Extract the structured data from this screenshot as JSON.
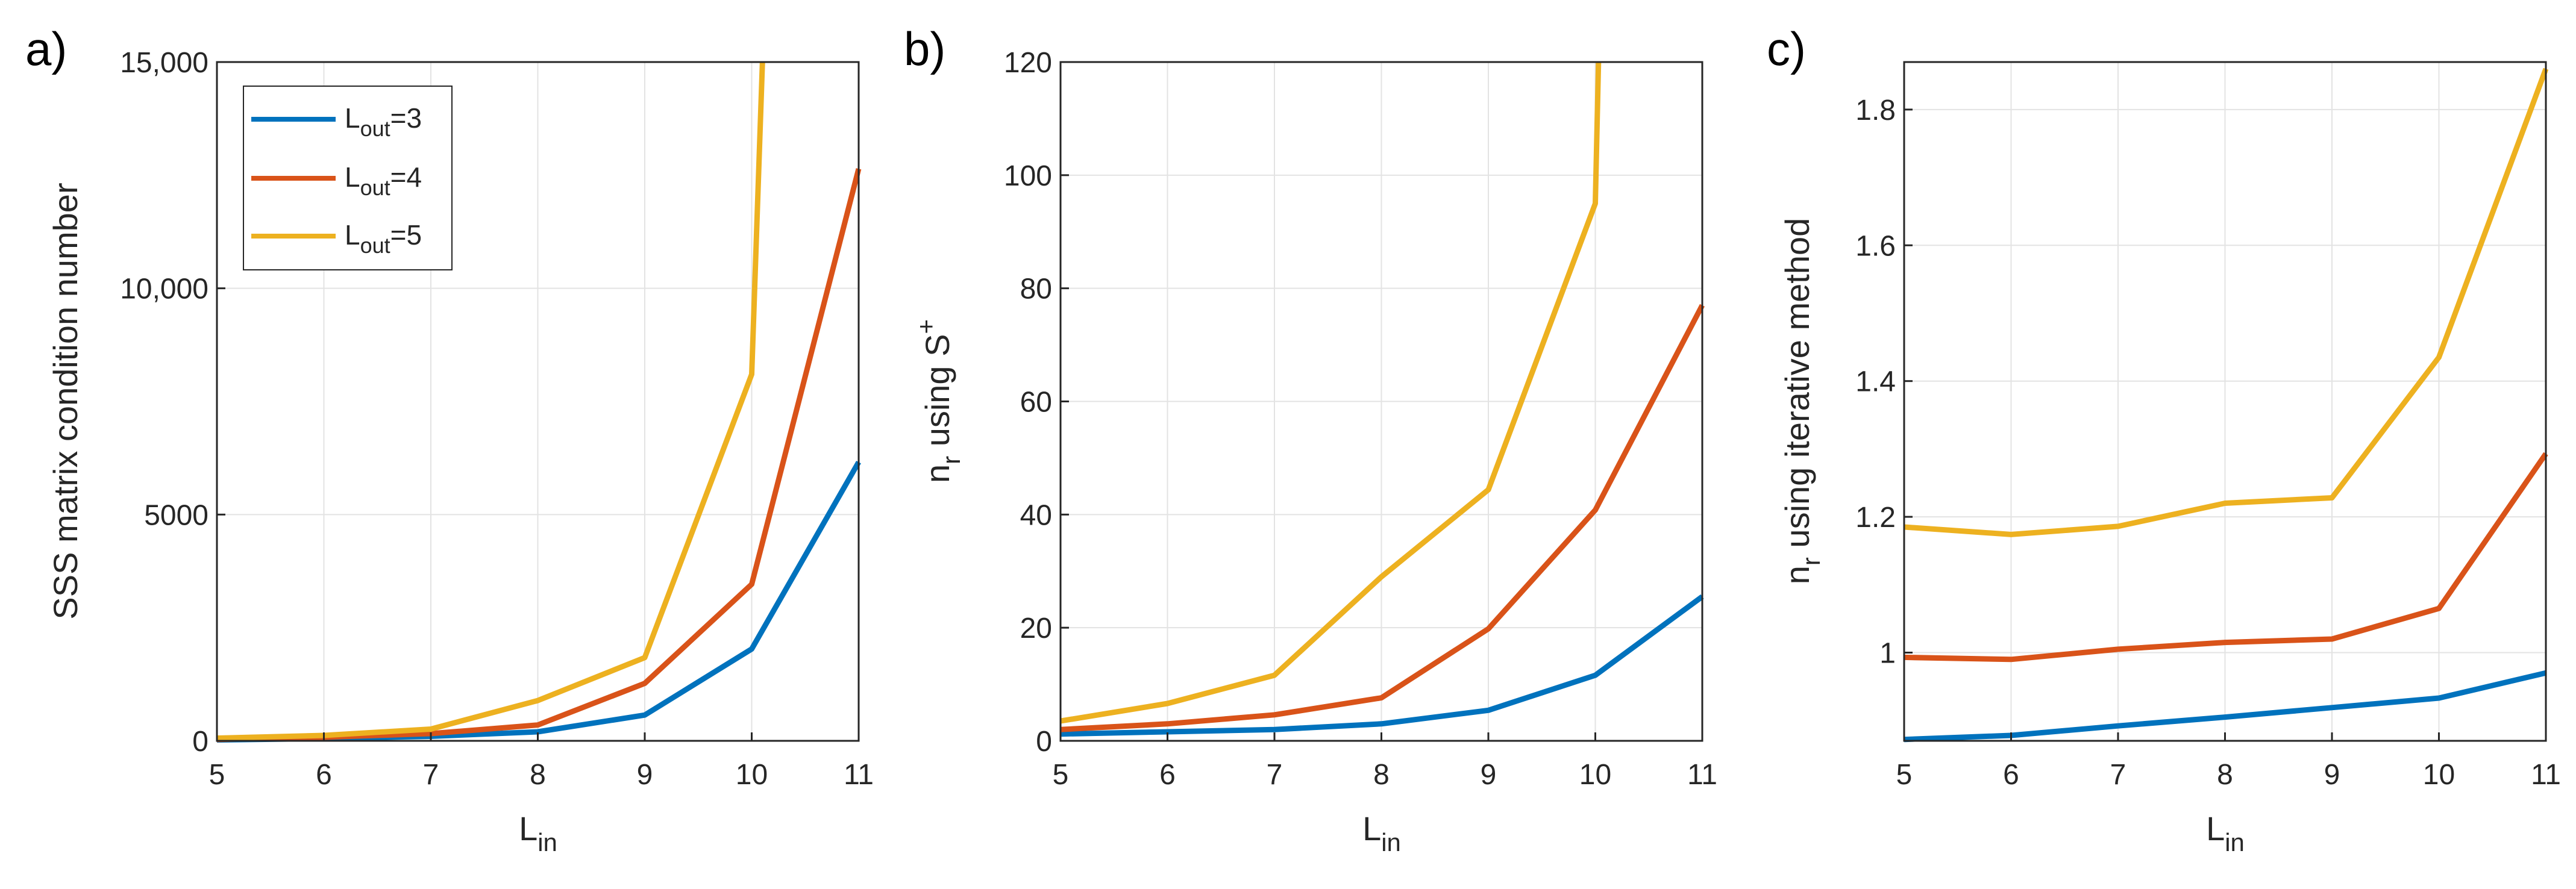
{
  "figure": {
    "colors": {
      "Lout3": "#0072BD",
      "Lout4": "#D95319",
      "Lout5": "#EDB120",
      "axis": "#262626",
      "grid": "#e3e3e3"
    },
    "legend": [
      {
        "base": "L",
        "sub": "out",
        "suffix": "=3",
        "color": "#0072BD"
      },
      {
        "base": "L",
        "sub": "out",
        "suffix": "=4",
        "color": "#D95319"
      },
      {
        "base": "L",
        "sub": "out",
        "suffix": "=5",
        "color": "#EDB120"
      }
    ]
  },
  "chart_data": [
    {
      "type": "line",
      "panel_label": "a)",
      "xlabel": {
        "base": "L",
        "sub": "in"
      },
      "ylabel": {
        "text": "SSS matrix condition number"
      },
      "x": [
        5,
        6,
        7,
        8,
        9,
        10,
        11
      ],
      "xlim": [
        5,
        11
      ],
      "ylim": [
        0,
        15000
      ],
      "xticks": [
        5,
        6,
        7,
        8,
        9,
        10,
        11
      ],
      "yticks": [
        0,
        5000,
        10000,
        15000
      ],
      "ytick_labels": [
        "0",
        "5000",
        "10,000",
        "15,000"
      ],
      "grid": true,
      "legend_position": "top-left",
      "series": [
        {
          "name": "Lout=3",
          "values": [
            20,
            50,
            100,
            200,
            570,
            2030,
            6160
          ]
        },
        {
          "name": "Lout=4",
          "values": [
            30,
            80,
            160,
            350,
            1270,
            3460,
            12640
          ]
        },
        {
          "name": "Lout=5",
          "x": [
            5,
            6,
            7,
            8,
            9,
            10,
            10.1
          ],
          "values": [
            60,
            120,
            260,
            890,
            1840,
            8100,
            15000
          ]
        }
      ]
    },
    {
      "type": "line",
      "panel_label": "b)",
      "xlabel": {
        "base": "L",
        "sub": "in"
      },
      "ylabel": {
        "pre": "n",
        "sub": "r",
        "mid": " using S",
        "sup": "+"
      },
      "x": [
        5,
        6,
        7,
        8,
        9,
        10,
        11
      ],
      "xlim": [
        5,
        11
      ],
      "ylim": [
        0,
        120
      ],
      "xticks": [
        5,
        6,
        7,
        8,
        9,
        10,
        11
      ],
      "yticks": [
        0,
        20,
        40,
        60,
        80,
        100,
        120
      ],
      "ytick_labels": [
        "0",
        "20",
        "40",
        "60",
        "80",
        "100",
        "120"
      ],
      "grid": true,
      "series": [
        {
          "name": "Lout=3",
          "values": [
            1.2,
            1.6,
            2.0,
            3.0,
            5.4,
            11.6,
            25.5
          ]
        },
        {
          "name": "Lout=4",
          "values": [
            2.0,
            3.0,
            4.6,
            7.6,
            19.8,
            40.8,
            77.0
          ]
        },
        {
          "name": "Lout=5",
          "x": [
            5,
            6,
            7,
            8,
            9,
            10,
            10.03
          ],
          "values": [
            3.5,
            6.6,
            11.6,
            29.0,
            44.4,
            95.0,
            120
          ]
        }
      ]
    },
    {
      "type": "line",
      "panel_label": "c)",
      "xlabel": {
        "base": "L",
        "sub": "in"
      },
      "ylabel": {
        "pre": "n",
        "sub": "r",
        "mid": " using iterative method"
      },
      "x": [
        5,
        6,
        7,
        8,
        9,
        10,
        11
      ],
      "xlim": [
        5,
        11
      ],
      "ylim": [
        0.87,
        1.87
      ],
      "xticks": [
        5,
        6,
        7,
        8,
        9,
        10,
        11
      ],
      "yticks": [
        1.0,
        1.2,
        1.4,
        1.6,
        1.8
      ],
      "ytick_labels": [
        "1",
        "1.2",
        "1.4",
        "1.6",
        "1.8"
      ],
      "grid": true,
      "series": [
        {
          "name": "Lout=3",
          "values": [
            0.872,
            0.878,
            0.892,
            0.905,
            0.919,
            0.933,
            0.97
          ]
        },
        {
          "name": "Lout=4",
          "values": [
            0.993,
            0.99,
            1.005,
            1.015,
            1.02,
            1.065,
            1.293
          ]
        },
        {
          "name": "Lout=5",
          "values": [
            1.185,
            1.174,
            1.186,
            1.22,
            1.228,
            1.435,
            1.86
          ]
        }
      ]
    }
  ]
}
